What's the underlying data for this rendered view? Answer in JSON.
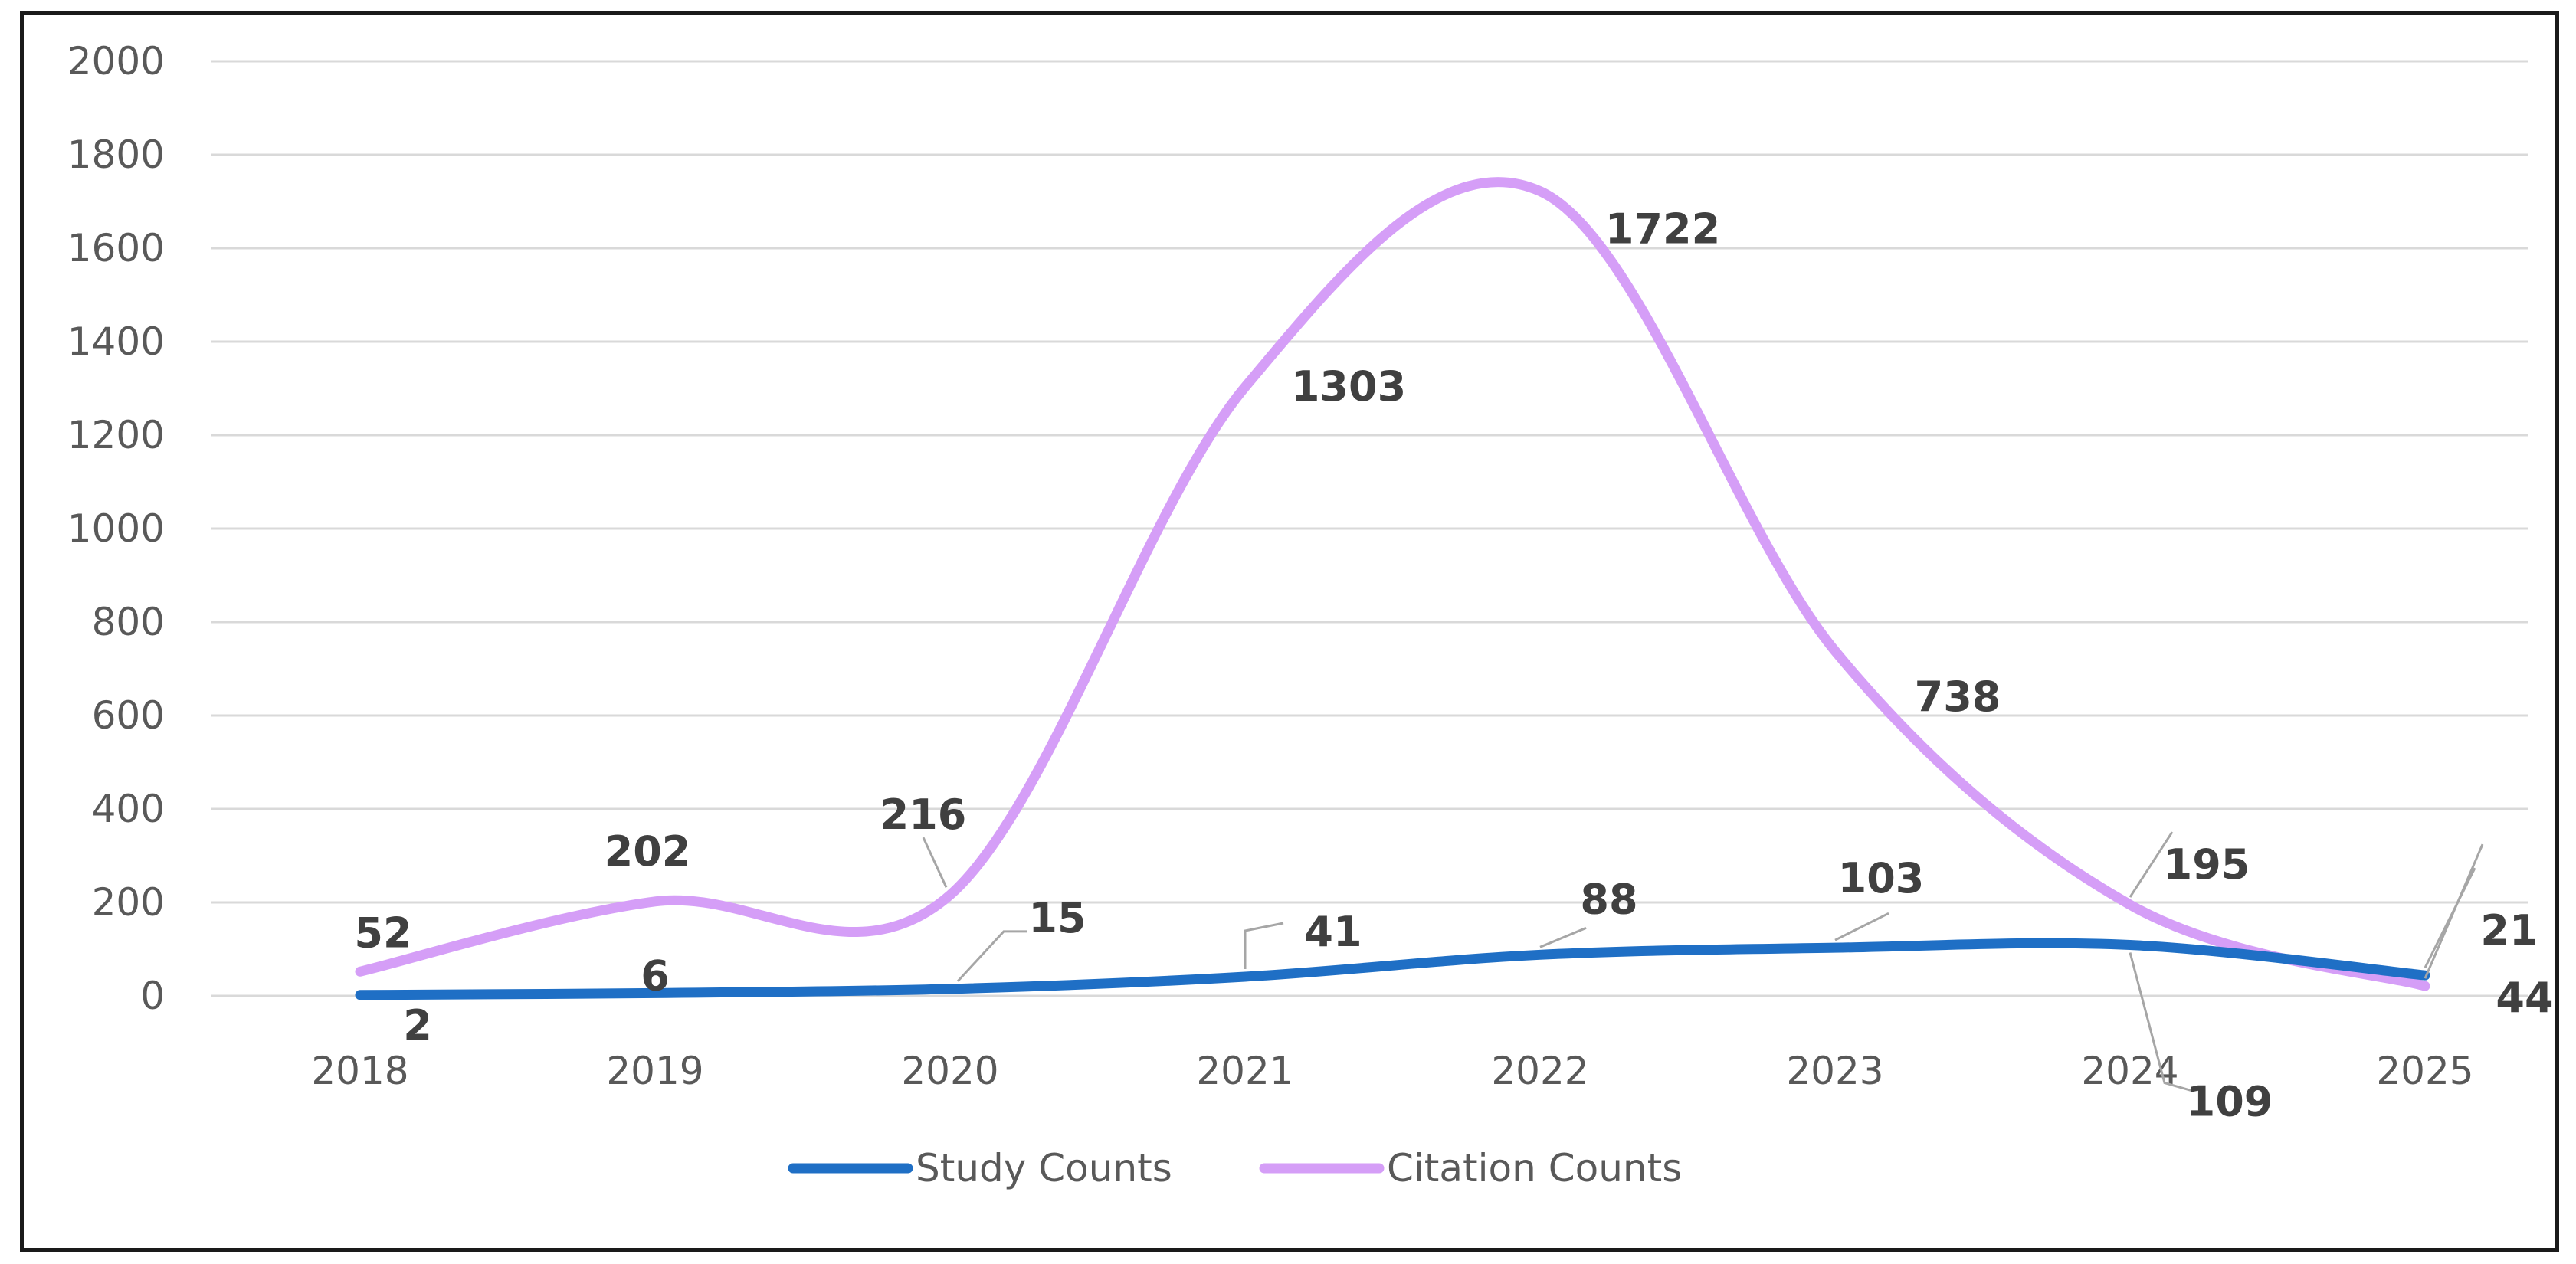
{
  "chart_data": {
    "type": "line",
    "smooth": true,
    "categories": [
      "2018",
      "2019",
      "2020",
      "2021",
      "2022",
      "2023",
      "2024",
      "2025"
    ],
    "ylim": [
      0,
      2000
    ],
    "yticks": [
      0,
      200,
      400,
      600,
      800,
      1000,
      1200,
      1400,
      1600,
      1800,
      2000
    ],
    "grid": true,
    "legend_position": "bottom",
    "series": [
      {
        "name": "Study Counts",
        "color": "#1f6fc5",
        "values": [
          2,
          6,
          15,
          41,
          88,
          103,
          109,
          44
        ]
      },
      {
        "name": "Citation Counts",
        "color": "#d59ef7",
        "values": [
          52,
          202,
          216,
          1303,
          1722,
          738,
          195,
          21
        ]
      }
    ]
  }
}
